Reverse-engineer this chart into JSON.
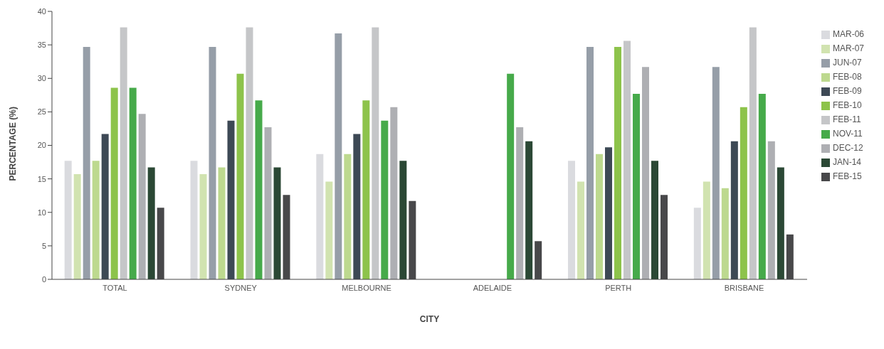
{
  "chart_data": {
    "type": "bar",
    "xlabel": "CITY",
    "ylabel": "PERCENTAGE (%)",
    "categories": [
      "TOTAL",
      "SYDNEY",
      "MELBOURNE",
      "ADELAIDE",
      "PERTH",
      "BRISBANE"
    ],
    "ylim": [
      0,
      40
    ],
    "yticks": [
      0,
      5,
      10,
      15,
      20,
      25,
      30,
      35,
      40
    ],
    "grid": false,
    "legend": "right",
    "series": [
      {
        "name": "MAR-06",
        "color": "#dadbdf",
        "values": [
          17.7,
          17.7,
          18.7,
          null,
          17.7,
          10.7
        ]
      },
      {
        "name": "MAR-07",
        "color": "#d1e3b0",
        "values": [
          15.7,
          15.7,
          14.6,
          null,
          14.6,
          14.6
        ]
      },
      {
        "name": "JUN-07",
        "color": "#969ea8",
        "values": [
          34.7,
          34.7,
          36.7,
          null,
          34.7,
          31.7
        ]
      },
      {
        "name": "FEB-08",
        "color": "#bdd98f",
        "values": [
          17.7,
          16.7,
          18.7,
          null,
          18.7,
          13.6
        ]
      },
      {
        "name": "FEB-09",
        "color": "#3d4955",
        "values": [
          21.7,
          23.7,
          21.7,
          null,
          19.7,
          20.6
        ]
      },
      {
        "name": "FEB-10",
        "color": "#8dc34b",
        "values": [
          28.6,
          30.7,
          26.7,
          null,
          34.7,
          25.7
        ]
      },
      {
        "name": "FEB-11",
        "color": "#c5c6c8",
        "values": [
          37.6,
          37.6,
          37.6,
          null,
          35.6,
          37.6
        ]
      },
      {
        "name": "NOV-11",
        "color": "#46aa4a",
        "values": [
          28.6,
          26.7,
          23.7,
          30.7,
          27.7,
          27.7
        ]
      },
      {
        "name": "DEC-12",
        "color": "#aeafb3",
        "values": [
          24.7,
          22.7,
          25.7,
          22.7,
          31.7,
          20.6
        ]
      },
      {
        "name": "JAN-14",
        "color": "#2b4835",
        "values": [
          16.7,
          16.7,
          17.7,
          20.6,
          17.7,
          16.7
        ]
      },
      {
        "name": "FEB-15",
        "color": "#48484a",
        "values": [
          10.7,
          12.6,
          11.7,
          5.7,
          12.6,
          6.7
        ]
      }
    ]
  }
}
